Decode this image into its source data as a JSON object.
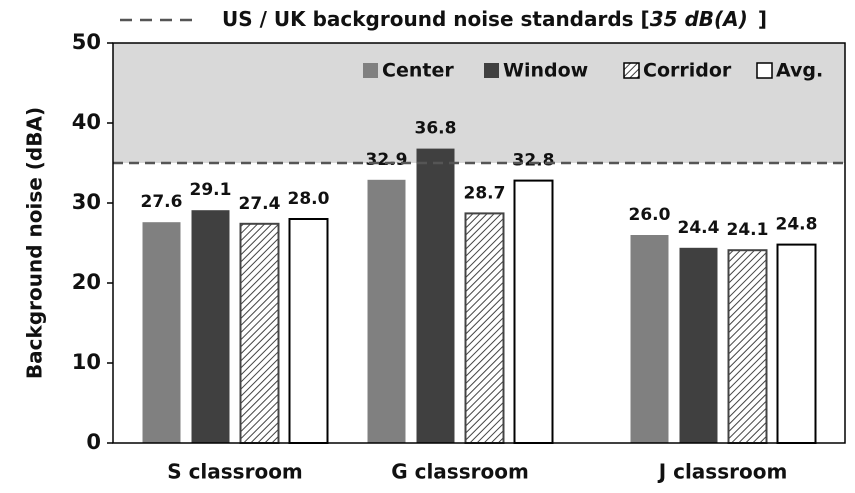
{
  "chart_data": {
    "type": "bar",
    "y_label": "Background noise (dBA)",
    "categories": [
      "S classroom",
      "G classroom",
      "J classroom"
    ],
    "series": [
      {
        "name": "Center",
        "color": "#808080",
        "values": [
          27.6,
          32.9,
          26.0
        ],
        "value_labels": [
          "27.6",
          "32.9",
          "26.0"
        ]
      },
      {
        "name": "Window",
        "color": "#404040",
        "values": [
          29.1,
          36.8,
          24.4
        ],
        "value_labels": [
          "29.1",
          "36.8",
          "24.4"
        ]
      },
      {
        "name": "Corridor",
        "color": "#ffffff",
        "hatch": true,
        "values": [
          27.4,
          28.7,
          24.1
        ],
        "value_labels": [
          "27.4",
          "28.7",
          "24.1"
        ]
      },
      {
        "name": "Avg.",
        "color": "#ffffff",
        "values": [
          28.0,
          32.8,
          24.8
        ],
        "value_labels": [
          "28.0",
          "32.8",
          "24.8"
        ]
      }
    ],
    "threshold": {
      "value": 35,
      "label_prefix": "US / UK background noise standards [",
      "label_emphasis": "35 dB(A)",
      "label_suffix": "]"
    },
    "ylim": [
      0,
      50
    ],
    "yticks": [
      0,
      10,
      20,
      30,
      40,
      50
    ]
  }
}
